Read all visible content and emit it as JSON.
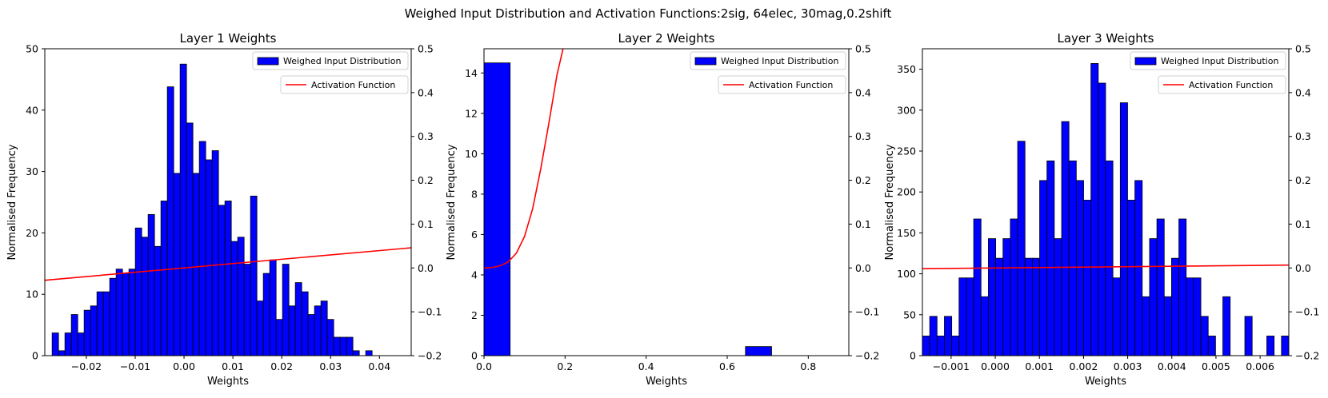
{
  "figure": {
    "suptitle": "Weighed Input Distribution and Activation Functions:2sig, 64elec, 30mag,0.2shift"
  },
  "colors": {
    "bar_fill": "#0000ff",
    "bar_edge": "#000000",
    "line": "#ff0000"
  },
  "chart_data": [
    {
      "type": "bar",
      "title": "Layer 1 Weights",
      "xlabel": "Weights",
      "ylabel": "Normalised Frequency",
      "xlim": [
        -0.0285,
        0.0465
      ],
      "ylim": [
        0,
        50
      ],
      "y2lim": [
        -0.2,
        0.5
      ],
      "xticks": [
        -0.02,
        -0.01,
        0.0,
        0.01,
        0.02,
        0.03,
        0.04
      ],
      "xtick_labels": [
        "−0.02",
        "−0.01",
        "0.00",
        "0.01",
        "0.02",
        "0.03",
        "0.04"
      ],
      "yticks": [
        0,
        10,
        20,
        30,
        40,
        50
      ],
      "ytick_labels": [
        "0",
        "10",
        "20",
        "30",
        "40",
        "50"
      ],
      "y2ticks": [
        -0.2,
        -0.1,
        0.0,
        0.1,
        0.2,
        0.3,
        0.4,
        0.5
      ],
      "y2tick_labels": [
        "−0.2",
        "−0.1",
        "0.0",
        "0.1",
        "0.2",
        "0.3",
        "0.4",
        "0.5"
      ],
      "bin_start": -0.027,
      "bin_width": 0.00131,
      "values": [
        3.7,
        0.8,
        3.7,
        6.7,
        3.7,
        7.4,
        8.1,
        10.4,
        10.4,
        12.6,
        14.1,
        13.4,
        14.1,
        20.8,
        19.3,
        23.0,
        17.8,
        25.2,
        43.8,
        29.7,
        47.5,
        37.9,
        29.7,
        34.9,
        31.9,
        33.4,
        24.5,
        25.2,
        18.6,
        19.3,
        14.9,
        26.0,
        8.9,
        13.4,
        15.6,
        5.9,
        14.9,
        8.1,
        11.9,
        10.4,
        6.7,
        8.1,
        8.9,
        5.9,
        3.0,
        3.0,
        3.0,
        0.8,
        0.0,
        0.8
      ],
      "line": {
        "x": [
          -0.0285,
          0.0465
        ],
        "y": [
          -0.028,
          0.046
        ]
      },
      "legend": [
        "Weighed Input Distribution",
        "Activation Function"
      ],
      "legend_position": "top-right"
    },
    {
      "type": "bar",
      "title": "Layer 2 Weights",
      "xlabel": "Weights",
      "ylabel": "Normalised Frequency",
      "xlim": [
        0,
        0.9
      ],
      "ylim": [
        0,
        15.2
      ],
      "y2lim": [
        -0.2,
        0.5
      ],
      "xticks": [
        0.0,
        0.2,
        0.4,
        0.6,
        0.8
      ],
      "xtick_labels": [
        "0.0",
        "0.2",
        "0.4",
        "0.6",
        "0.8"
      ],
      "yticks": [
        0,
        2,
        4,
        6,
        8,
        10,
        12,
        14
      ],
      "ytick_labels": [
        "0",
        "2",
        "4",
        "6",
        "8",
        "10",
        "12",
        "14"
      ],
      "y2ticks": [
        -0.2,
        -0.1,
        0.0,
        0.1,
        0.2,
        0.3,
        0.4,
        0.5
      ],
      "y2tick_labels": [
        "−0.2",
        "−0.1",
        "0.0",
        "0.1",
        "0.2",
        "0.3",
        "0.4",
        "0.5"
      ],
      "bin_start": 0.0,
      "bin_width": 0.0645,
      "values": [
        14.5,
        0,
        0,
        0,
        0,
        0,
        0,
        0,
        0,
        0,
        0.45,
        0,
        0,
        0
      ],
      "line": {
        "x": [
          0.0,
          0.02,
          0.04,
          0.06,
          0.08,
          0.1,
          0.12,
          0.14,
          0.16,
          0.18,
          0.2
        ],
        "y": [
          0.0,
          0.001,
          0.005,
          0.014,
          0.034,
          0.072,
          0.135,
          0.226,
          0.33,
          0.44,
          0.52
        ]
      },
      "legend": [
        "Weighed Input Distribution",
        "Activation Function"
      ],
      "legend_position": "top-right"
    },
    {
      "type": "bar",
      "title": "Layer 3 Weights",
      "xlabel": "Weights",
      "ylabel": "Normalised Frequency",
      "xlim": [
        -0.00165,
        0.00665
      ],
      "ylim": [
        0,
        375
      ],
      "y2lim": [
        -0.2,
        0.5
      ],
      "xticks": [
        -0.001,
        0.0,
        0.001,
        0.002,
        0.003,
        0.004,
        0.005,
        0.006
      ],
      "xtick_labels": [
        "−0.001",
        "0.000",
        "0.001",
        "0.002",
        "0.003",
        "0.004",
        "0.005",
        "0.006"
      ],
      "yticks": [
        0,
        50,
        100,
        150,
        200,
        250,
        300,
        350
      ],
      "ytick_labels": [
        "0",
        "50",
        "100",
        "150",
        "200",
        "250",
        "300",
        "350"
      ],
      "y2ticks": [
        -0.2,
        -0.1,
        0.0,
        0.1,
        0.2,
        0.3,
        0.4,
        0.5
      ],
      "y2tick_labels": [
        "−0.2",
        "−0.1",
        "0.0",
        "0.1",
        "0.2",
        "0.3",
        "0.4",
        "0.5"
      ],
      "bin_start": -0.00165,
      "bin_width": 0.000166,
      "values": [
        24,
        48,
        24,
        48,
        24,
        95,
        95,
        167,
        72,
        143,
        119,
        143,
        167,
        262,
        119,
        119,
        214,
        238,
        143,
        286,
        238,
        214,
        190,
        357,
        333,
        238,
        95,
        309,
        190,
        214,
        72,
        143,
        167,
        72,
        119,
        167,
        95,
        95,
        48,
        24,
        0,
        72,
        0,
        0,
        48,
        0,
        0,
        24,
        0,
        24
      ],
      "line": {
        "x": [
          -0.00165,
          0.00665
        ],
        "y": [
          -0.0017,
          0.0066
        ]
      },
      "legend": [
        "Weighed Input Distribution",
        "Activation Function"
      ],
      "legend_position": "top-right"
    }
  ]
}
